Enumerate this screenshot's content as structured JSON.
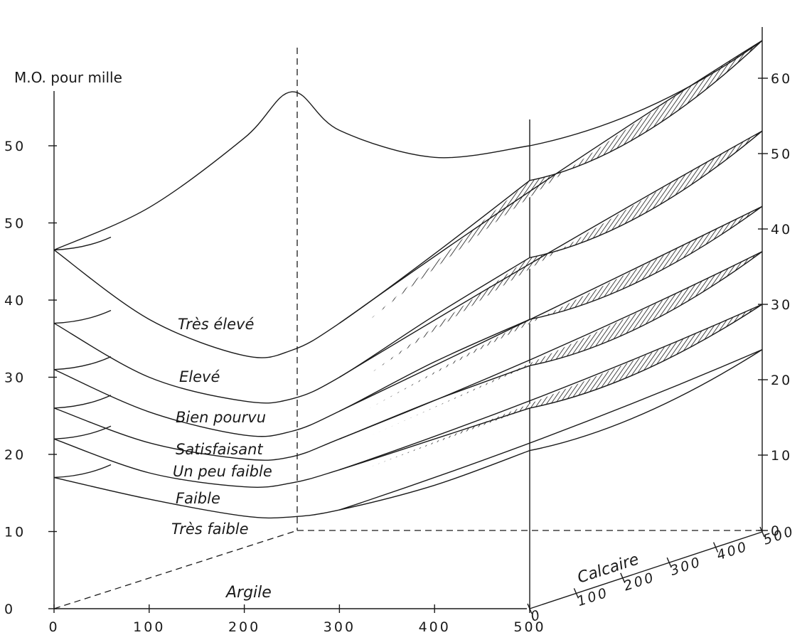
{
  "chart_data": {
    "type": "line",
    "title": "",
    "ylabel": "M.O. pour mille",
    "xlabel": "Argile",
    "zlabel": "Calcaire",
    "left_y_ticks": [
      "0",
      "10",
      "20",
      "30",
      "40",
      "50",
      "50"
    ],
    "right_y_ticks": [
      "0",
      "10",
      "20",
      "30",
      "40",
      "50",
      "60"
    ],
    "x_ticks": [
      "0",
      "100",
      "200",
      "300",
      "400",
      "500"
    ],
    "z_ticks": [
      "0",
      "100",
      "200",
      "300",
      "400",
      "500"
    ],
    "classes": [
      "Très élevé",
      "Elevé",
      "Bien pourvu",
      "Satisfaisant",
      "Un peu faible",
      "Faible",
      "Très faible"
    ],
    "boundaries": [
      {
        "argile": [
          0,
          100,
          200,
          250,
          300,
          400,
          500
        ],
        "mo": [
          17,
          14.2,
          12,
          11.9,
          12.8,
          16,
          20.5
        ],
        "mo_at_calcaire_500": 24
      },
      {
        "argile": [
          0,
          100,
          200,
          250,
          300,
          400,
          500
        ],
        "mo": [
          22,
          17.6,
          15.8,
          16.3,
          18,
          22,
          26
        ],
        "mo_at_calcaire_500": 30
      },
      {
        "argile": [
          0,
          100,
          200,
          250,
          300,
          400,
          500
        ],
        "mo": [
          26,
          21.5,
          19.4,
          19.7,
          22,
          27,
          31.5
        ],
        "mo_at_calcaire_500": 37
      },
      {
        "argile": [
          0,
          100,
          200,
          250,
          300,
          400,
          500
        ],
        "mo": [
          31,
          25.5,
          22.5,
          23,
          25.6,
          32,
          37.5
        ],
        "mo_at_calcaire_500": 43
      },
      {
        "argile": [
          0,
          100,
          200,
          250,
          300,
          400,
          500
        ],
        "mo": [
          37,
          30,
          26.9,
          27.2,
          30,
          38,
          45.5
        ],
        "mo_at_calcaire_500": 53
      },
      {
        "argile": [
          0,
          100,
          200,
          250,
          300,
          400,
          500
        ],
        "mo": [
          46.5,
          37.5,
          32.8,
          33.5,
          37,
          46,
          55.5
        ],
        "mo_at_calcaire_500": 65
      }
    ],
    "top_curve": {
      "argile": [
        0,
        100,
        200,
        250,
        300,
        400,
        500
      ],
      "mo": [
        46.5,
        52,
        61,
        67,
        62,
        58.5,
        60
      ]
    },
    "grid": false,
    "legend": "none"
  }
}
